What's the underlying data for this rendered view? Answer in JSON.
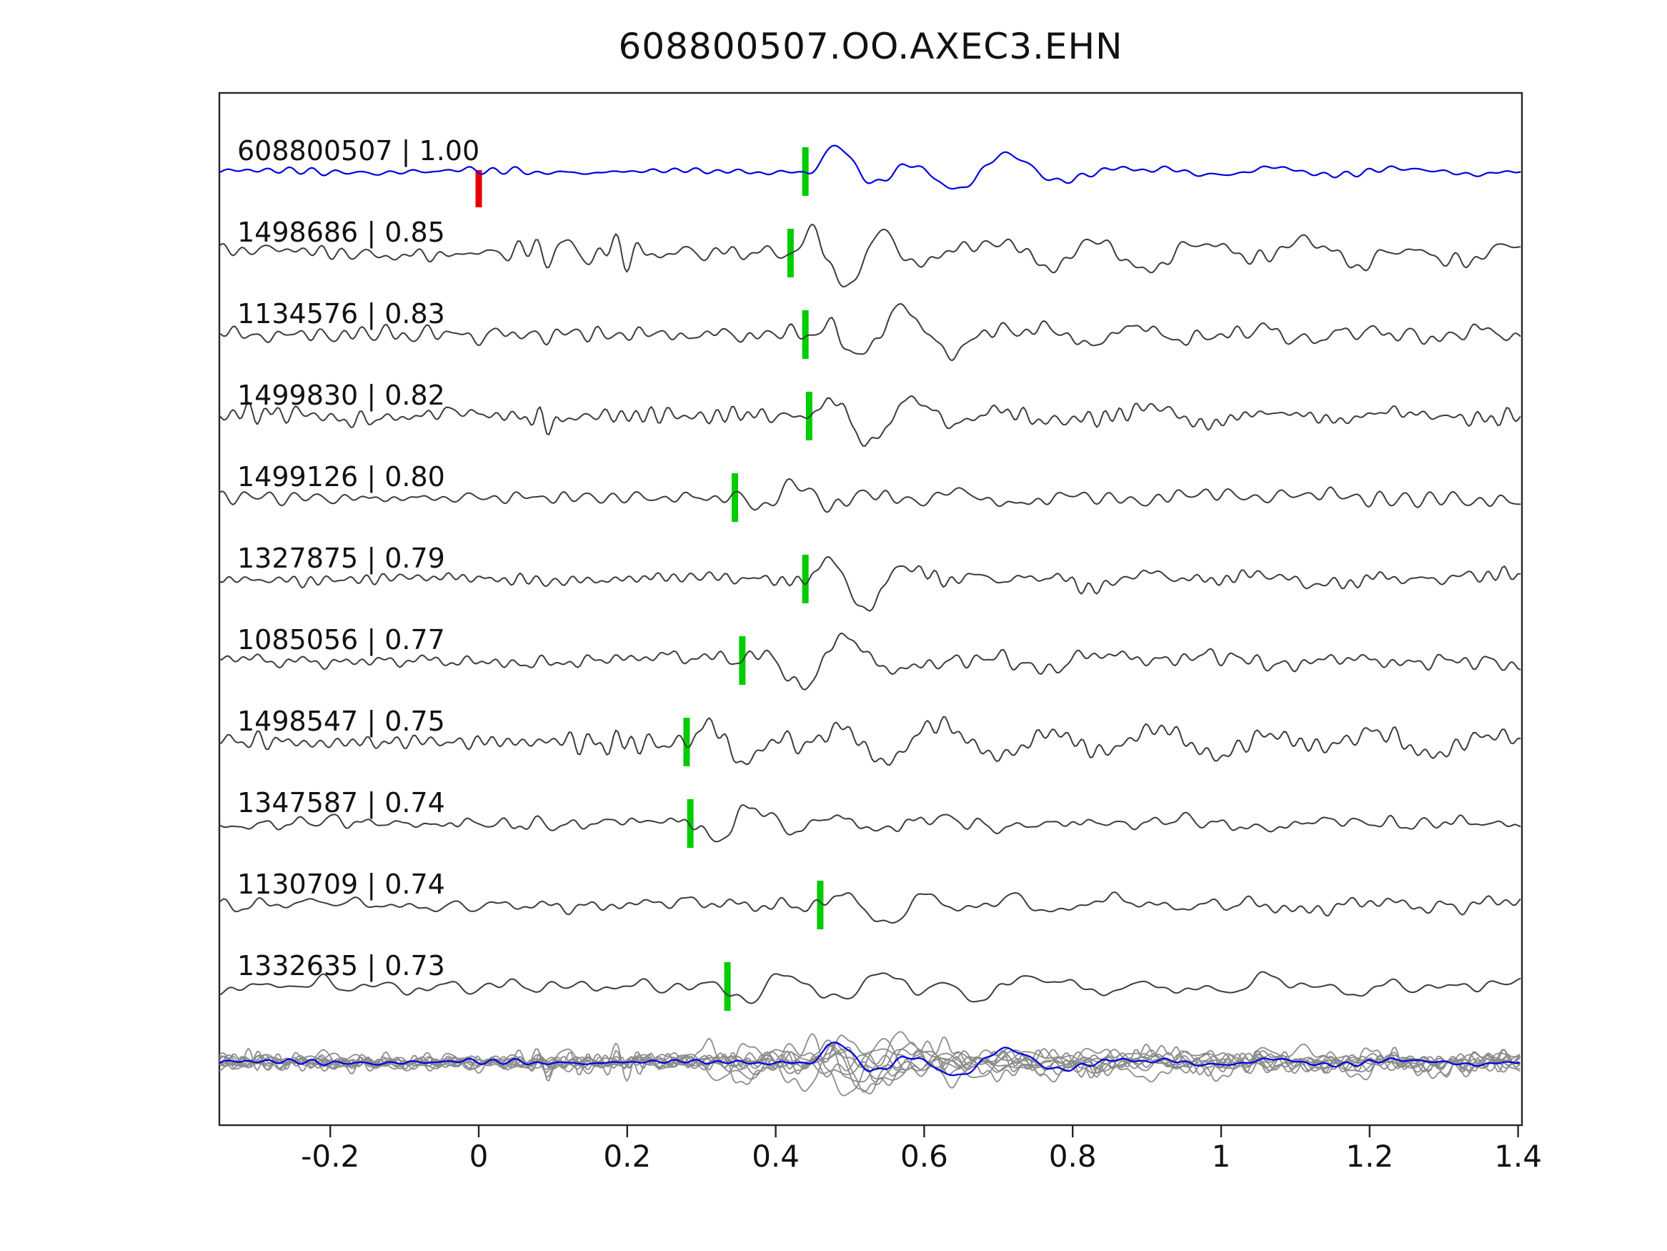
{
  "chart_data": {
    "type": "line",
    "title": "608800507.OO.AXEC3.EHN",
    "xlabel": "",
    "ylabel": "",
    "xlim": [
      -0.349,
      1.405
    ],
    "grid": false,
    "legend": null,
    "xticks": [
      {
        "value": -0.2,
        "label": "-0.2"
      },
      {
        "value": 0,
        "label": "0"
      },
      {
        "value": 0.2,
        "label": "0.2"
      },
      {
        "value": 0.4,
        "label": "0.4"
      },
      {
        "value": 0.6,
        "label": "0.6"
      },
      {
        "value": 0.8,
        "label": "0.8"
      },
      {
        "value": 1,
        "label": "1"
      },
      {
        "value": 1.2,
        "label": "1.2"
      },
      {
        "value": 1.4,
        "label": "1.4"
      }
    ],
    "colors": {
      "reference_trace": "#0000e0",
      "detection_trace": "#3c3c3c",
      "stack_trace": "#8c8c8c",
      "pick_marker": "#00cc00",
      "template_pick_marker": "#e80000",
      "frame": "#262626",
      "text": "#111111"
    },
    "reference_id": "608800507",
    "traces": [
      {
        "id": "608800507",
        "cc": "1.00",
        "label": "608800507 | 1.00",
        "pick": 0.44,
        "template_pick": 0.0,
        "is_reference": true,
        "synth": {
          "seed": 11,
          "noise": 0.035,
          "amp": 1.1,
          "f": 8.2,
          "decay": 0.17,
          "coda": 0.32,
          "codaDecay": 0.55,
          "polarity": 1
        }
      },
      {
        "id": "1498686",
        "cc": "0.85",
        "label": "1498686 | 0.85",
        "pick": 0.42,
        "is_reference": false,
        "synth": {
          "seed": 22,
          "noise": 0.11,
          "burst": [
            0.03,
            0.28,
            2.6
          ],
          "amp": 1.25,
          "f": 10.5,
          "decay": 0.14,
          "coda": 0.5,
          "codaDecay": 0.9,
          "polarity": 1
        }
      },
      {
        "id": "1134576",
        "cc": "0.83",
        "label": "1134576 | 0.83",
        "pick": 0.44,
        "is_reference": false,
        "synth": {
          "seed": 33,
          "noise": 0.1,
          "amp": 1.2,
          "f": 9.5,
          "decay": 0.13,
          "coda": 0.35,
          "codaDecay": 0.6,
          "polarity": 1
        }
      },
      {
        "id": "1499830",
        "cc": "0.82",
        "label": "1499830 | 0.82",
        "pick": 0.445,
        "is_reference": false,
        "synth": {
          "seed": 44,
          "noise": 0.1,
          "burst": [
            0.05,
            0.12,
            2.2
          ],
          "amp": 1.15,
          "f": 9.0,
          "decay": 0.14,
          "coda": 0.3,
          "codaDecay": 0.6,
          "polarity": 1
        }
      },
      {
        "id": "1499126",
        "cc": "0.80",
        "label": "1499126 | 0.80",
        "pick": 0.345,
        "is_reference": false,
        "synth": {
          "seed": 55,
          "noise": 0.09,
          "amp": 1.15,
          "f": 9.0,
          "decay": 0.1,
          "coda": 0.25,
          "codaDecay": 0.5,
          "polarity": -1
        }
      },
      {
        "id": "1327875",
        "cc": "0.79",
        "label": "1327875 | 0.79",
        "pick": 0.44,
        "is_reference": false,
        "synth": {
          "seed": 66,
          "noise": 0.09,
          "amp": 1.15,
          "f": 9.5,
          "decay": 0.12,
          "coda": 0.3,
          "codaDecay": 0.55,
          "polarity": 1
        }
      },
      {
        "id": "1085056",
        "cc": "0.77",
        "label": "1085056 | 0.77",
        "pick": 0.355,
        "is_reference": false,
        "synth": {
          "seed": 77,
          "noise": 0.1,
          "amp": 1.1,
          "f": 9.0,
          "decay": 0.13,
          "coda": 0.3,
          "codaDecay": 0.6,
          "polarity": 1
        }
      },
      {
        "id": "1498547",
        "cc": "0.75",
        "label": "1498547 | 0.75",
        "pick": 0.28,
        "is_reference": false,
        "synth": {
          "seed": 88,
          "noise": 0.11,
          "burst": [
            0.1,
            0.26,
            1.8
          ],
          "amp": 1.15,
          "f": 10.0,
          "decay": 0.12,
          "coda": 0.55,
          "codaDecay": 1.0,
          "polarity": 1
        }
      },
      {
        "id": "1347587",
        "cc": "0.74",
        "label": "1347587 | 0.74",
        "pick": 0.285,
        "is_reference": false,
        "synth": {
          "seed": 99,
          "noise": 0.08,
          "amp": 1.2,
          "f": 8.5,
          "decay": 0.1,
          "coda": 0.22,
          "codaDecay": 0.5,
          "polarity": -1
        }
      },
      {
        "id": "1130709",
        "cc": "0.74",
        "label": "1130709 | 0.74",
        "pick": 0.46,
        "is_reference": false,
        "synth": {
          "seed": 110,
          "noise": 0.08,
          "amp": 1.2,
          "f": 8.5,
          "decay": 0.12,
          "coda": 0.25,
          "codaDecay": 0.55,
          "polarity": 1
        }
      },
      {
        "id": "1332635",
        "cc": "0.73",
        "label": "1332635 | 0.73",
        "pick": 0.335,
        "is_reference": false,
        "synth": {
          "seed": 121,
          "noise": 0.09,
          "amp": 1.1,
          "f": 9.0,
          "decay": 0.12,
          "coda": 0.3,
          "codaDecay": 0.7,
          "polarity": -1
        }
      }
    ],
    "stack_panel": {
      "description": "all detection traces overlaid in gray with reference template in blue",
      "includes_all_traces": true
    }
  }
}
